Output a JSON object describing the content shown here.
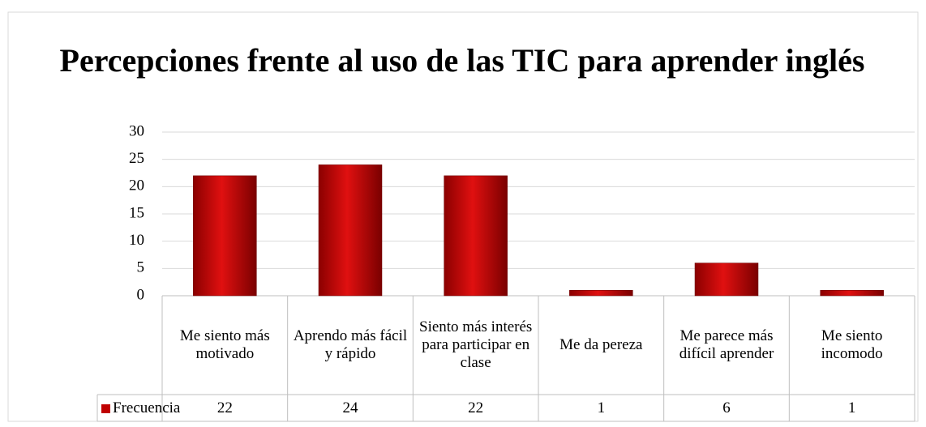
{
  "chart_data": {
    "type": "bar",
    "title": "Percepciones frente al uso de las TIC para aprender inglés",
    "categories": [
      "Me siento más motivado",
      "Aprendo más fácil y rápido",
      "Siento más interés para participar en clase",
      "Me da pereza",
      "Me parece más difícil aprender",
      "Me siento incomodo"
    ],
    "series": [
      {
        "name": "Frecuencia",
        "color": "#c00000",
        "values": [
          22,
          24,
          22,
          1,
          6,
          1
        ]
      }
    ],
    "ylim": [
      0,
      30
    ],
    "yticks": [
      0,
      5,
      10,
      15,
      20,
      25,
      30
    ],
    "grid": true,
    "legend": "data-table"
  }
}
